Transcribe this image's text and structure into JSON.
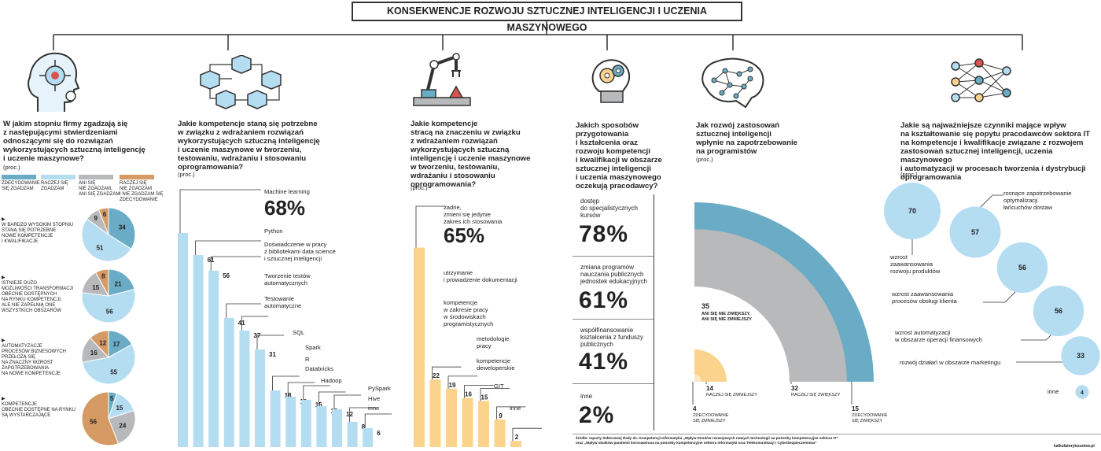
{
  "title": "KONSEKWENCJE ROZWOJU SZTUCZNEJ  INTELIGENCJI I UCZENIA MASZYNOWEGO",
  "colors": {
    "dark_blue": "#6aacc6",
    "light_blue": "#b5ddf2",
    "gray": "#b7b9bb",
    "orange": "#d69a64",
    "yellow": "#fbd38d",
    "pale_yellow": "#fde8c4"
  },
  "icons": [
    "head-circuit-icon",
    "cubes-network-icon",
    "robot-arm-icon",
    "lightbulb-gears-icon",
    "brain-network-icon",
    "neural-network-icon"
  ],
  "col1": {
    "question": [
      "W jakim stopniu firmy zgadzają się",
      "z następującymi stwierdzeniami",
      "odnoszącymi się do rozwiązań",
      "wykorzystujących sztuczną inteligencję",
      "i uczenie maszynowe?"
    ],
    "unit": "(proc.)",
    "legend": [
      {
        "text": [
          "ZDECYDOWANIE",
          "SIĘ ZGADZAM"
        ],
        "color": "#6aacc6"
      },
      {
        "text": [
          "RACZEJ SIĘ",
          "ZGADZAM"
        ],
        "color": "#b5ddf2"
      },
      {
        "text": [
          "ANI SIĘ",
          "NIE ZGADZAM,",
          "ANI SIĘ ZGADZAM"
        ],
        "color": "#b7b9bb"
      },
      {
        "text": [
          "RACZEJ SIĘ",
          "NIE ZGADZAM",
          "I NIE ZGADZAM SIĘ",
          "ZDECYDOWANIE"
        ],
        "color": "#d69a64"
      }
    ],
    "statements": [
      [
        "W BARDZO WYSOKIM STOPNIU",
        "STANĄ SIĘ POTRZEBNE",
        "NOWE KOMPETENCJE",
        "I KWALIFIKACJE"
      ],
      [
        "ISTNIEJE DUŻO",
        "MOŻLIWOŚCI TRANSFORMACJI",
        "OBECNIE DOSTĘPNYCH",
        "NA RYNKU KOMPETENCJI,",
        "ALE NIE ZAPEŁNIĄ ONE",
        "WSZYSTKICH OBSZARÓW"
      ],
      [
        "AUTOMATYZACJE",
        "PROCESÓW BIZNESOWYCH",
        "PRZEŁOŻĄ SIĘ",
        "NA ZNACZNY WZROST",
        "ZAPOTRZEBOWANIA",
        "NA NOWE KOMPETENCJE"
      ],
      [
        "KOMPETENCJE",
        "OBECNIE DOSTĘPNE NA RYNKU",
        "SĄ WYSTARCZAJĄCE"
      ]
    ]
  },
  "col2": {
    "question": [
      "Jakie kompetencje staną się potrzebne",
      "w związku z wdrażaniem rozwiązań",
      "wykorzystujących sztuczną inteligencję",
      "i uczenie maszynowe w tworzeniu,",
      "testowaniu, wdrażaniu i stosowaniu",
      "oprogramowania?"
    ],
    "unit": "(proc.)"
  },
  "col3": {
    "question": [
      "Jakie kompetencje",
      "stracą na znaczeniu w związku",
      "z wdrażaniem rozwiązań",
      "wykorzystujących sztuczną",
      "inteligencję i uczenie maszynowe",
      "w tworzeniu, testowaniu,",
      "wdrażaniu i stosowaniu",
      "oprogramowania?"
    ],
    "unit": "(proc.)"
  },
  "col4": {
    "question": [
      "Jakich sposobów",
      "przygotowania",
      "i kształcenia oraz",
      "rozwoju kompetencji",
      "i kwalifikacji w obszarze",
      "sztucznej inteligencji",
      "i uczenia maszynowego",
      "oczekują pracodawcy?"
    ],
    "items": [
      {
        "label": [
          "dostęp",
          "do specjalistycznych",
          "kursów"
        ],
        "value": "78%"
      },
      {
        "label": [
          "zmiana programów",
          "nauczania publicznych",
          "jednostek edukacyjnych"
        ],
        "value": "61%"
      },
      {
        "label": [
          "współfinansowanie",
          "kształcenia z funduszy",
          "publicznych"
        ],
        "value": "41%"
      },
      {
        "label": [
          "inne"
        ],
        "value": "2%"
      }
    ]
  },
  "col5": {
    "question": [
      "Jak rozwój zastosowań",
      "sztucznej inteligencji",
      "wpłynie na zapotrzebowanie",
      "na programistów"
    ],
    "unit": "(proc.)"
  },
  "col6": {
    "question": [
      "Jakie są najważniejsze czynniki mające wpływ",
      "na kształtowanie się popytu pracodawców sektora IT",
      "na kompetencje i kwalifikacje związane z rozwojem",
      "zastosowań sztucznej inteligencji, uczenia maszynowego",
      "i automatyzacji w procesach tworzenia i dystrybucji",
      "oprogramowania"
    ],
    "unit": "(proc.)"
  },
  "footer": {
    "source": [
      "Źródło: raporty Sektorowej Rady ds. Kompetencji Informatyka „Wpływ trendów rozwojowych nowych technologii na potrzeby kompetencyjne sektora IT”",
      "oraz „Wpływ skutków pandemii koronawirusa na potrzeby kompetencyjne sektora informatyki oraz Telekomunikacji i Cyberbezpieczeństwa”"
    ],
    "credit": "kalkulatorykosztow.pl"
  },
  "chart_data": [
    {
      "type": "pie",
      "title": "W jakim stopniu firmy zgadzają się z następującymi stwierdzeniami odnoszącymi się do rozwiązań wykorzystujących sztuczną inteligencję i uczenie maszynowe?",
      "unit": "(proc.)",
      "series_names": [
        "ZDECYDOWANIE SIĘ ZGADZAM",
        "RACZEJ SIĘ ZGADZAM",
        "ANI SIĘ NIE ZGADZAM, ANI SIĘ ZGADZAM",
        "RACZEJ SIĘ NIE ZGADZAM I NIE ZGADZAM SIĘ ZDECYDOWANIE"
      ],
      "pies": [
        {
          "values": [
            34,
            51,
            9,
            6
          ]
        },
        {
          "values": [
            21,
            56,
            15,
            8
          ]
        },
        {
          "values": [
            17,
            55,
            16,
            12
          ]
        },
        {
          "values": [
            5,
            15,
            24,
            56
          ]
        }
      ]
    },
    {
      "type": "bar",
      "title": "Jakie kompetencje staną się potrzebne w związku z wdrażaniem rozwiązań wykorzystujących sztuczną inteligencję i uczenie maszynowe w tworzeniu, testowaniu, wdrażaniu i stosowaniu oprogramowania?",
      "categories": [
        "Machine learning",
        "Python",
        "Doświadczenie w pracy z bibliotekami data science i sztucznej inteligencji",
        "Tworzenie testów automatycznych",
        "Testowanie automatyczne",
        "SQL",
        "Spark",
        "R",
        "Databricks",
        "Hadoop",
        "PySpark",
        "Hive",
        "inne"
      ],
      "values": [
        68,
        61,
        56,
        41,
        37,
        31,
        18,
        16,
        15,
        13,
        12,
        8,
        6
      ],
      "labels": [
        "68%",
        "61",
        "56",
        "41",
        "37",
        "31",
        "18",
        "16",
        "15",
        "13",
        "12",
        "8",
        "6"
      ]
    },
    {
      "type": "bar",
      "title": "Jakie kompetencje stracą na znaczeniu w związku z wdrażaniem rozwiązań wykorzystujących sztuczną inteligencję i uczenie maszynowe w tworzeniu, testowaniu, wdrażaniu i stosowaniu oprogramowania?",
      "categories": [
        "żadne, zmieni się jedynie zakres ich stosowania",
        "utrzymanie i prowadzenie dokumentacji",
        "kompetencje w zakresie pracy w środowiskach programistycznych",
        "metodologie pracy",
        "kompetencje deweloperskie",
        "GIT",
        "inne"
      ],
      "values": [
        65,
        22,
        19,
        16,
        15,
        9,
        2
      ],
      "labels": [
        "65%",
        "22",
        "19",
        "16",
        "15",
        "9",
        "2"
      ]
    },
    {
      "type": "table",
      "title": "Jakich sposobów przygotowania i kształcenia oraz rozwoju kompetencji i kwalifikacji w obszarze sztucznej inteligencji i uczenia maszynowego oczekują pracodawcy?",
      "categories": [
        "dostęp do specjalistycznych kursów",
        "zmiana programów nauczania publicznych jednostek edukacyjnych",
        "współfinansowanie kształcenia z funduszy publicznych",
        "inne"
      ],
      "values": [
        78,
        61,
        41,
        2
      ]
    },
    {
      "type": "pie",
      "title": "Jak rozwój zastosowań sztucznej inteligencji wpłynie na zapotrzebowanie na programistów",
      "categories": [
        "ZDECYDOWANIE SIĘ ZMNIEJSZY",
        "RACZEJ SIĘ ZMNIEJSZY",
        "ANI SIĘ NIE ZWIĘKSZY, ANI SIĘ NIE ZMNIEJSZY",
        "RACZEJ SIĘ ZWIĘKSZY",
        "ZDECYDOWANIE SIĘ ZWIĘKSZY"
      ],
      "values": [
        4,
        14,
        35,
        32,
        15
      ],
      "colors": [
        "#fde8c4",
        "#fbd38d",
        "#ffffff",
        "#b7b9bb",
        "#6aacc6"
      ]
    },
    {
      "type": "scatter",
      "title": "Jakie są najważniejsze czynniki mające wpływ na kształtowanie się popytu pracodawców sektora IT na kompetencje i kwalifikacje związane z rozwojem zastosowań sztucznej inteligencji, uczenia maszynowego i automatyzacji w procesach tworzenia i dystrybucji oprogramowania",
      "categories": [
        "wzrost zaawansowania rozwoju produktów",
        "rosnące zapotrzebowanie optymalizacji łańcuchów dostaw",
        "wzrost zaawansowania procesów obsługi klienta",
        "wzrost automatyzacji w obszarze operacji finansowych",
        "rozwój działań w obszarze marketingu",
        "inne"
      ],
      "values": [
        70,
        57,
        56,
        56,
        33,
        4
      ]
    }
  ]
}
